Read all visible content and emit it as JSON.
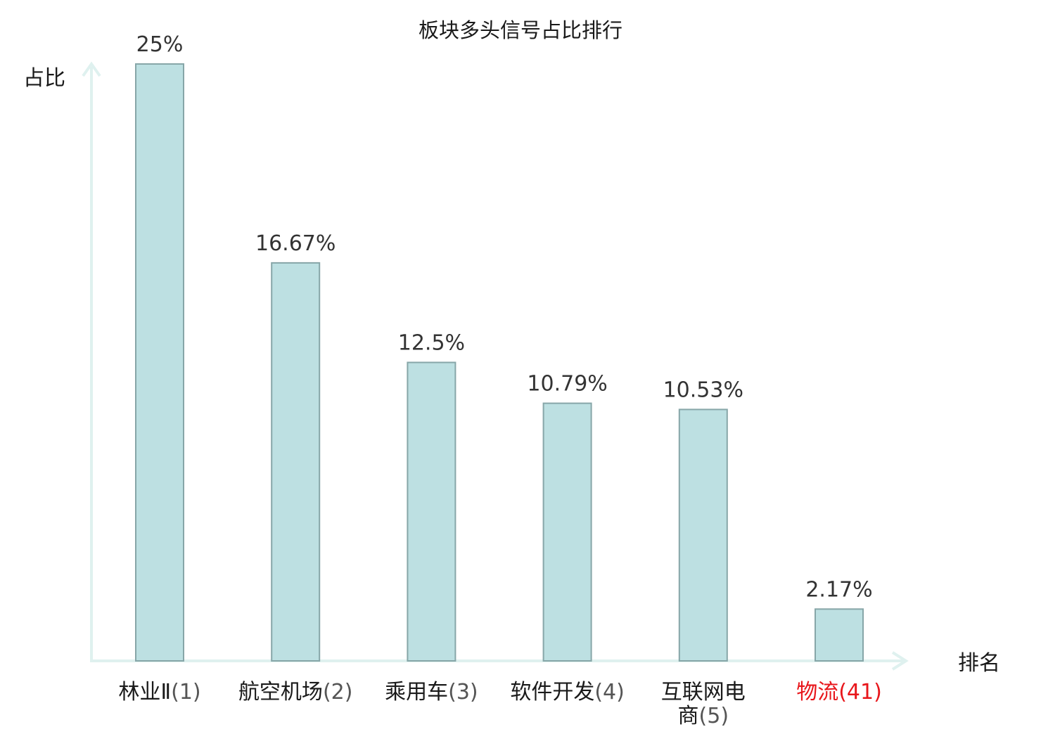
{
  "chart_data": {
    "type": "bar",
    "title": "板块多头信号占比排行",
    "xlabel": "排名",
    "ylabel": "占比",
    "ylim": [
      0,
      25
    ],
    "grid": false,
    "legend": "none",
    "categories": [
      {
        "name": "林业Ⅱ",
        "rank": "(1)",
        "name_lines": [
          "林业Ⅱ"
        ],
        "highlight": false
      },
      {
        "name": "航空机场",
        "rank": "(2)",
        "name_lines": [
          "航空机场"
        ],
        "highlight": false
      },
      {
        "name": "乘用车",
        "rank": "(3)",
        "name_lines": [
          "乘用车"
        ],
        "highlight": false
      },
      {
        "name": "软件开发",
        "rank": "(4)",
        "name_lines": [
          "软件开发"
        ],
        "highlight": false
      },
      {
        "name": "互联网电商",
        "rank": "(5)",
        "name_lines": [
          "互联网电",
          "商"
        ],
        "highlight": false
      },
      {
        "name": "物流",
        "rank": "(41)",
        "name_lines": [
          "物流"
        ],
        "highlight": true
      }
    ],
    "values": [
      25,
      16.67,
      12.5,
      10.79,
      10.53,
      2.17
    ],
    "data_labels": [
      "25%",
      "16.67%",
      "12.5%",
      "10.79%",
      "10.53%",
      "2.17%"
    ]
  },
  "colors": {
    "bar_fill": "#bde0e2",
    "bar_stroke": "#87a6a8",
    "axis": "#dff1ef",
    "text": "#1a1a1a",
    "value_text": "#333333",
    "rank_text": "#555555",
    "highlight": "#e8161b"
  }
}
